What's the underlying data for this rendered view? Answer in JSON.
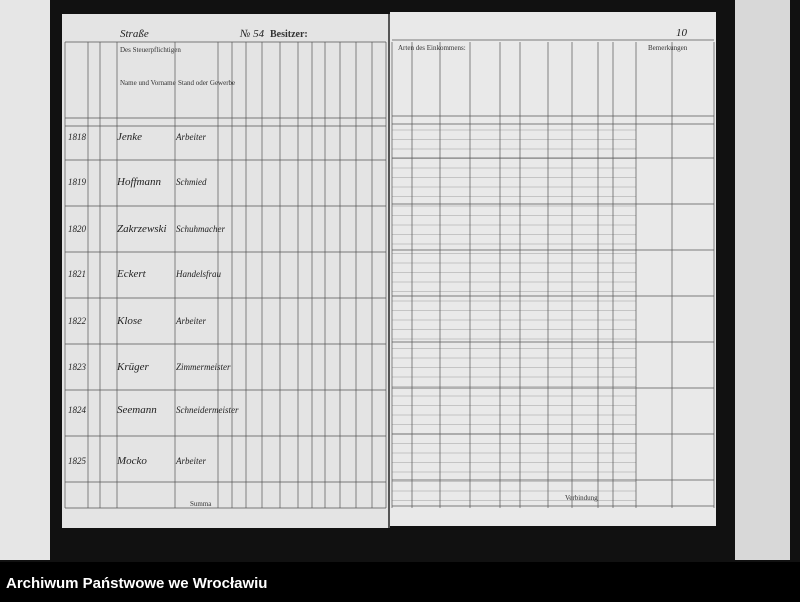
{
  "header": {
    "street_label": "Straße",
    "owner_label": "Besitzer:",
    "house_number": "№ 54",
    "page_number": "10"
  },
  "left_page": {
    "column_headers": [
      "Des Steuerpflichtigen",
      "Name und Vorname",
      "Stand oder Gewerbe"
    ],
    "rows": [
      {
        "number": "1818",
        "name": "Jenke",
        "occupation": "Arbeiter"
      },
      {
        "number": "1819",
        "name": "Hoffmann",
        "occupation": "Schmied"
      },
      {
        "number": "1820",
        "name": "Zakrzewski",
        "occupation": "Schuhmacher"
      },
      {
        "number": "1821",
        "name": "Eckert",
        "occupation": "Handelsfrau"
      },
      {
        "number": "1822",
        "name": "Klose",
        "occupation": "Arbeiter"
      },
      {
        "number": "1823",
        "name": "Krüger",
        "occupation": "Zimmermeister"
      },
      {
        "number": "1824",
        "name": "Seemann",
        "occupation": "Schneidermeister"
      },
      {
        "number": "1825",
        "name": "Mocko",
        "occupation": "Arbeiter"
      }
    ],
    "summary": "Summa"
  },
  "right_page": {
    "column_headers": [
      "Arten des Einkommens:",
      "Bemerkungen"
    ],
    "summary": "Verbindung"
  },
  "footer": "Archiwum Państwowe we Wrocławiu"
}
